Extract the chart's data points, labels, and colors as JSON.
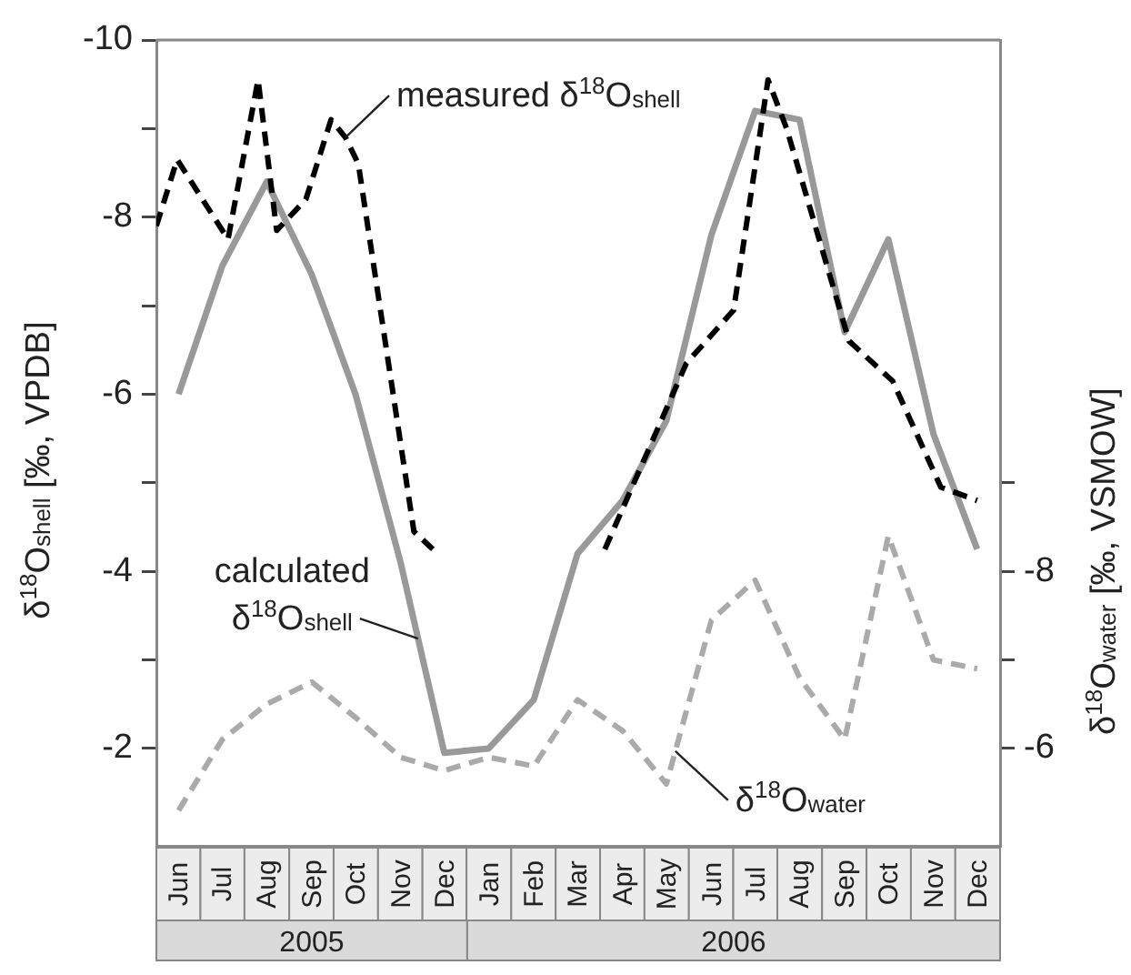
{
  "chart_data": {
    "type": "line",
    "ylabel": "δ$^{18}$O$_{shell}$ [‰, VPDB]",
    "y2label": "δ$^{18}$O$_{water}$ [‰, VSMOW]",
    "x": [
      "2005-06-16",
      "2005-07-16",
      "2005-08-16",
      "2005-09-16",
      "2005-10-16",
      "2005-11-16",
      "2005-12-16",
      "2006-01-16",
      "2006-02-15",
      "2006-03-16",
      "2006-04-16",
      "2006-05-16",
      "2006-06-16",
      "2006-07-16",
      "2006-08-16",
      "2006-09-16",
      "2006-10-16",
      "2006-11-16",
      "2006-12-16"
    ],
    "xlim": [
      "2005-06-01",
      "2007-01-01"
    ],
    "xticks": [
      {
        "value": "2005-06-16",
        "label": "Jun"
      },
      {
        "value": "2005-07-16",
        "label": "Jul"
      },
      {
        "value": "2005-08-16",
        "label": "Aug"
      },
      {
        "value": "2005-09-16",
        "label": "Sep"
      },
      {
        "value": "2005-10-16",
        "label": "Oct"
      },
      {
        "value": "2005-11-16",
        "label": "Nov"
      },
      {
        "value": "2005-12-16",
        "label": "Dec"
      },
      {
        "value": "2006-01-16",
        "label": "Jan"
      },
      {
        "value": "2006-02-15",
        "label": "Feb"
      },
      {
        "value": "2006-03-16",
        "label": "Mar"
      },
      {
        "value": "2006-04-16",
        "label": "Apr"
      },
      {
        "value": "2006-05-16",
        "label": "May"
      },
      {
        "value": "2006-06-16",
        "label": "Jun"
      },
      {
        "value": "2006-07-16",
        "label": "Jul"
      },
      {
        "value": "2006-08-16",
        "label": "Aug"
      },
      {
        "value": "2006-09-16",
        "label": "Sep"
      },
      {
        "value": "2006-10-16",
        "label": "Oct"
      },
      {
        "value": "2006-11-16",
        "label": "Nov"
      },
      {
        "value": "2006-12-16",
        "label": "Dec"
      }
    ],
    "ylim": [
      -0.9,
      -10
    ],
    "yticks": [
      -10,
      {
        "value": -9,
        "label": null
      },
      -8,
      {
        "value": -7,
        "label": null
      },
      -6,
      {
        "value": -5,
        "label": null
      },
      -4,
      {
        "value": -3,
        "label": null
      },
      -2
    ],
    "y2lim": [
      -4.9,
      -14
    ],
    "y2ticks": [
      {
        "value": -9,
        "label": null
      },
      -8,
      {
        "value": -7,
        "label": null
      },
      -6
    ],
    "series": [
      {
        "name": "measured δ$^{18}$O$_{shell}$",
        "color": "#000000",
        "line_style": "dashed",
        "x": [
          "2005-06-01",
          "2005-06-15",
          "2005-07-20",
          "2005-08-10",
          "2005-08-23",
          "2005-09-12",
          "2005-09-29",
          "2005-10-09",
          "2005-10-18",
          "2005-11-25",
          "2005-12-08",
          "2006-02-15",
          "2006-04-04",
          "2006-05-30",
          "2006-07-01",
          "2006-07-25",
          "2006-08-07",
          "2006-09-19",
          "2006-10-19",
          "2006-11-21",
          "2006-12-16"
        ],
        "values": [
          -7.9,
          -8.65,
          -7.75,
          -9.55,
          -7.85,
          -8.2,
          -9.1,
          -8.9,
          -8.6,
          -4.45,
          -4.25,
          null,
          -4.25,
          -6.35,
          -6.95,
          -9.55,
          -9.0,
          -6.6,
          -6.15,
          -4.95,
          -4.8
        ]
      },
      {
        "name": "calculated δ$^{18}$O$_{shell}$",
        "color": "#999999",
        "line_style": "solid",
        "values": [
          -6.0,
          -7.45,
          -8.4,
          -7.35,
          -6.0,
          -4.1,
          -1.95,
          -2.0,
          -2.55,
          -4.2,
          -4.8,
          -5.7,
          -7.8,
          -9.2,
          -9.1,
          -6.7,
          -7.75,
          -5.55,
          -4.25
        ]
      },
      {
        "name": "δ$^{18}$O$_{water}$",
        "color": "#aaaaaa",
        "line_style": "dashed",
        "axis": "y2",
        "values": [
          -5.3,
          -6.1,
          -6.5,
          -6.75,
          -6.35,
          -5.9,
          -5.75,
          -5.9,
          -5.8,
          -6.55,
          -6.2,
          -5.6,
          -7.45,
          -7.9,
          -6.8,
          -6.1,
          -8.4,
          -7.0,
          -6.9
        ]
      }
    ],
    "annotations": [
      "2005",
      "2006"
    ],
    "grid": false,
    "legend": false,
    "marker": "none"
  }
}
